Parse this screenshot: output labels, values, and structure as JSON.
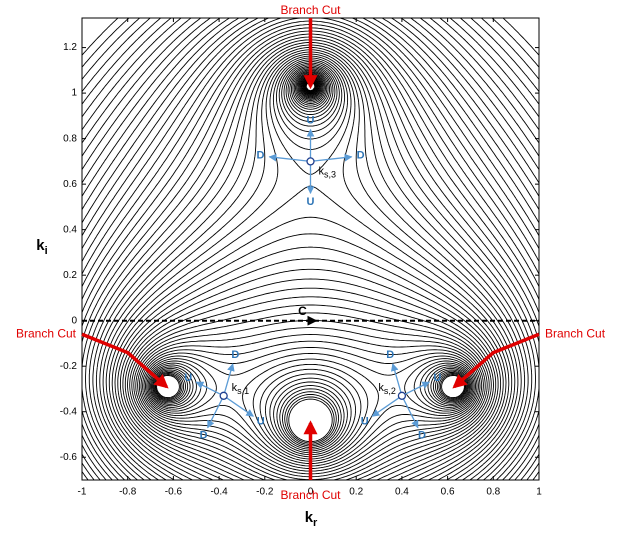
{
  "chart_data": {
    "type": "contour",
    "x_label": "k",
    "x_label_sub": "r",
    "y_label": "k",
    "y_label_sub": "i",
    "xlim": [
      -1,
      1
    ],
    "ylim": [
      -0.7,
      1.33
    ],
    "xticks": [
      -1,
      -0.8,
      -0.6,
      -0.4,
      -0.2,
      0,
      0.2,
      0.4,
      0.6,
      0.8,
      1
    ],
    "yticks": [
      -0.6,
      -0.4,
      -0.2,
      0,
      0.2,
      0.4,
      0.6,
      0.8,
      1,
      1.2
    ],
    "integration_path": {
      "label": "C",
      "y": 0,
      "arrow_x": 0
    },
    "saddle_points": [
      {
        "label": "k",
        "label_sub": "s,1",
        "x": -0.38,
        "y": -0.33,
        "arrows": [
          {
            "label": "D",
            "x": -0.34,
            "y": -0.19
          },
          {
            "label": "U",
            "x": -0.5,
            "y": -0.27
          },
          {
            "label": "U",
            "x": -0.25,
            "y": -0.42
          },
          {
            "label": "D",
            "x": -0.45,
            "y": -0.47
          }
        ]
      },
      {
        "label": "k",
        "label_sub": "s,2",
        "x": 0.4,
        "y": -0.33,
        "arrows": [
          {
            "label": "D",
            "x": 0.36,
            "y": -0.19
          },
          {
            "label": "U",
            "x": 0.52,
            "y": -0.27
          },
          {
            "label": "U",
            "x": 0.27,
            "y": -0.42
          },
          {
            "label": "D",
            "x": 0.47,
            "y": -0.47
          }
        ]
      },
      {
        "label": "k",
        "label_sub": "s,3",
        "x": 0,
        "y": 0.7,
        "arrows": [
          {
            "label": "U",
            "x": 0,
            "y": 0.84
          },
          {
            "label": "U",
            "x": 0,
            "y": 0.56
          },
          {
            "label": "D",
            "x": -0.18,
            "y": 0.72
          },
          {
            "label": "D",
            "x": 0.18,
            "y": 0.72
          }
        ]
      }
    ],
    "branch_cuts": [
      {
        "label": "Branch Cut",
        "points": [
          [
            0,
            1.33
          ],
          [
            0,
            1.03
          ]
        ]
      },
      {
        "label": "Branch Cut",
        "points": [
          [
            -1,
            -0.06
          ],
          [
            -0.8,
            -0.14
          ],
          [
            -0.63,
            -0.29
          ]
        ]
      },
      {
        "label": "Branch Cut",
        "points": [
          [
            1,
            -0.06
          ],
          [
            0.8,
            -0.14
          ],
          [
            0.63,
            -0.29
          ]
        ]
      },
      {
        "label": "Branch Cut",
        "points": [
          [
            0,
            -0.7
          ],
          [
            0,
            -0.45
          ]
        ]
      }
    ]
  }
}
